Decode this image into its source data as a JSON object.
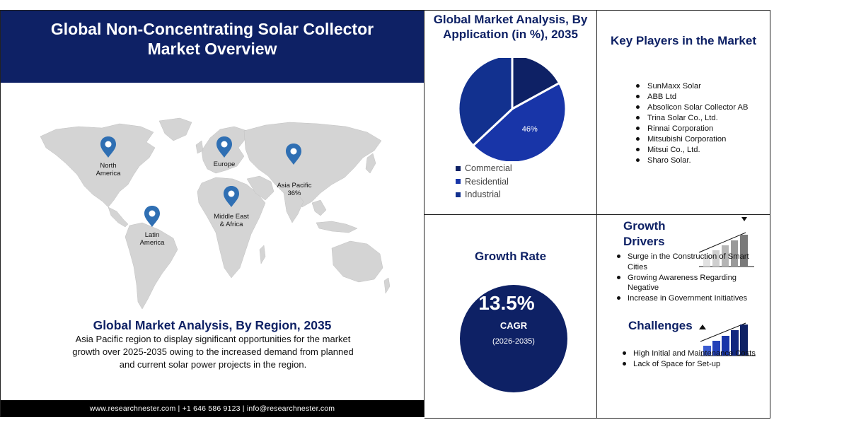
{
  "header": {
    "title": "Global Non-Concentrating Solar Collector Market Overview"
  },
  "map": {
    "pins": [
      {
        "label": "North America",
        "lines": [
          "North",
          "America"
        ]
      },
      {
        "label": "Europe",
        "lines": [
          "Europe"
        ]
      },
      {
        "label": "Asia Pacific",
        "lines": [
          "Asia Pacific",
          "36%"
        ]
      },
      {
        "label": "Middle East & Africa",
        "lines": [
          "Middle East",
          "& Africa"
        ]
      },
      {
        "label": "Latin America",
        "lines": [
          "Latin",
          "America"
        ]
      }
    ]
  },
  "region": {
    "title": "Global Market Analysis, By Region, 2035",
    "text": "Asia Pacific region to display significant opportunities for the market growth over 2025-2035 owing to the increased demand from planned and current solar power projects in the region."
  },
  "footer": {
    "text": "www.researchnester.com | +1 646 586 9123 | info@researchnester.com"
  },
  "application": {
    "title": "Global Market Analysis, By Application (in %), 2035"
  },
  "chart_data": {
    "type": "pie",
    "title": "Global Market Analysis, By Application (in %), 2035",
    "categories": [
      "Commercial",
      "Residential",
      "Industrial"
    ],
    "values": [
      17,
      46,
      37
    ],
    "data_labels": [
      "",
      "46%",
      ""
    ],
    "colors": [
      "#0e2165",
      "#1835a8",
      "#12318f"
    ],
    "legend_position": "bottom-left"
  },
  "players": {
    "title": "Key Players in the Market",
    "items": [
      "SunMaxx Solar",
      "ABB Ltd",
      "Absolicon Solar Collector AB",
      "Trina Solar Co., Ltd.",
      "Rinnai Corporation",
      "Mitsubishi Corporation",
      "Mitsui Co., Ltd.",
      "Sharo Solar."
    ]
  },
  "growth": {
    "title": "Growth Rate",
    "value": "13.5%",
    "label": "CAGR",
    "period": "(2026-2035)"
  },
  "drivers": {
    "title": "Growth Drivers",
    "items": [
      "Surge in the Construction of Smart Cities",
      "Growing Awareness Regarding Negative",
      "Increase in Government Initiatives"
    ]
  },
  "challenges": {
    "title": "Challenges",
    "items": [
      "High Initial and Maintenance Costs",
      "Lack of Space for Set-up"
    ]
  },
  "colors": {
    "navy": "#0e2165",
    "pin": "#2f6fb3",
    "map": "#d6d6d6"
  }
}
